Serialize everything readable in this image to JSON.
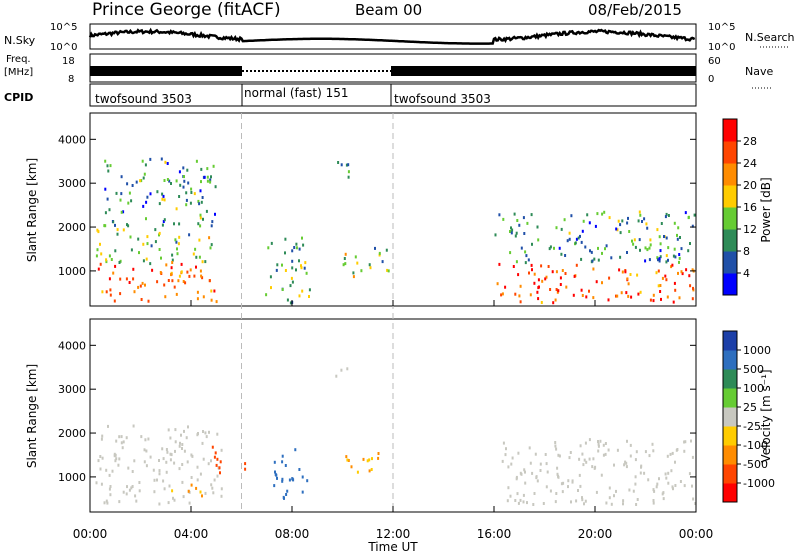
{
  "header": {
    "station": "Prince George (fitACF)",
    "beam": "Beam 00",
    "date": "08/Feb/2015"
  },
  "left_labels": {
    "nsky": "N.Sky",
    "freq_line1": "Freq.",
    "freq_line2": "[MHz]",
    "cpid": "CPID"
  },
  "right_labels": {
    "nsearch": "N.Search",
    "nave": "Nave"
  },
  "noise_axis": {
    "top_left": "10^5",
    "bottom_left": "10^0",
    "top_right": "10^5",
    "bottom_right": "10^0"
  },
  "freq_axis": {
    "left_ticks": [
      "18",
      "8"
    ],
    "right_ticks": [
      "60",
      "0"
    ]
  },
  "cpid_segments": [
    {
      "label": "twofsound 3503",
      "start_hour": 0,
      "end_hour": 6
    },
    {
      "label": "normal (fast) 151",
      "start_hour": 6,
      "end_hour": 12
    },
    {
      "label": "twofsound 3503",
      "start_hour": 12,
      "end_hour": 24
    }
  ],
  "colors": {
    "power": [
      "#0000ff",
      "#2050a8",
      "#2e8b57",
      "#66cc33",
      "#ffcc00",
      "#ff8c00",
      "#ff4500",
      "#ff0000"
    ],
    "velocity": [
      "#1c3fa8",
      "#2e6fbf",
      "#2e8b57",
      "#66cc33",
      "#c8c8c0",
      "#ffcc00",
      "#ff8c00",
      "#ff4500",
      "#ff0000"
    ],
    "ground_scatter": "#c8c8c0"
  },
  "chart_data": [
    {
      "type": "heatmap",
      "panel": "power",
      "ylabel": "Slant Range [km]",
      "ylim": [
        200,
        4600
      ],
      "yticks": [
        "4000",
        "3000",
        "2000",
        "1000"
      ],
      "xlim": [
        0,
        24
      ],
      "colorbar": {
        "label": "Power [dB]",
        "ticks": [
          "28",
          "24",
          "20",
          "16",
          "12",
          "8",
          "4"
        ],
        "range": [
          0,
          32
        ]
      },
      "regions": [
        {
          "t0": 0.2,
          "t1": 5.0,
          "r0": 300,
          "r1": 1200,
          "power": 26
        },
        {
          "t0": 0.2,
          "t1": 4.8,
          "r0": 1200,
          "r1": 2000,
          "power": 14
        },
        {
          "t0": 0.5,
          "t1": 5.0,
          "r0": 2000,
          "r1": 3600,
          "power": 10
        },
        {
          "t0": 6.9,
          "t1": 8.7,
          "r0": 300,
          "r1": 1800,
          "power": 12
        },
        {
          "t0": 9.5,
          "t1": 10.3,
          "r0": 3100,
          "r1": 3600,
          "power": 10
        },
        {
          "t0": 10.0,
          "t1": 11.8,
          "r0": 900,
          "r1": 1600,
          "power": 14
        },
        {
          "t0": 16.1,
          "t1": 24.0,
          "r0": 300,
          "r1": 1200,
          "power": 26
        },
        {
          "t0": 16.0,
          "t1": 24.0,
          "r0": 1200,
          "r1": 2400,
          "power": 10
        }
      ]
    },
    {
      "type": "heatmap",
      "panel": "velocity",
      "ylabel": "Slant Range [km]",
      "ylim": [
        200,
        4600
      ],
      "yticks": [
        "4000",
        "3000",
        "2000",
        "1000"
      ],
      "xlim": [
        0,
        24
      ],
      "xticks": [
        "00:00",
        "04:00",
        "08:00",
        "12:00",
        "16:00",
        "20:00",
        "00:00"
      ],
      "xlabel": "Time UT",
      "colorbar": {
        "label": "Velocity [m s⁻¹]",
        "ticks": [
          "1000",
          "500",
          "100",
          "25",
          "-25",
          "-100",
          "-500",
          "-1000"
        ]
      },
      "regions": [
        {
          "t0": 0.2,
          "t1": 5.2,
          "r0": 400,
          "r1": 2200,
          "velocity": 0
        },
        {
          "t0": 3.0,
          "t1": 4.5,
          "r0": 600,
          "r1": 900,
          "velocity": -100
        },
        {
          "t0": 4.8,
          "t1": 5.4,
          "r0": 900,
          "r1": 1800,
          "velocity": -700
        },
        {
          "t0": 6.0,
          "t1": 6.2,
          "r0": 900,
          "r1": 1600,
          "velocity": -800
        },
        {
          "t0": 7.2,
          "t1": 8.6,
          "r0": 500,
          "r1": 1700,
          "velocity": 150
        },
        {
          "t0": 9.5,
          "t1": 10.2,
          "r0": 3200,
          "r1": 3500,
          "velocity": 0
        },
        {
          "t0": 10.0,
          "t1": 11.8,
          "r0": 1100,
          "r1": 1600,
          "velocity": -100
        },
        {
          "t0": 16.3,
          "t1": 24.0,
          "r0": 400,
          "r1": 1900,
          "velocity": 0
        }
      ]
    }
  ]
}
